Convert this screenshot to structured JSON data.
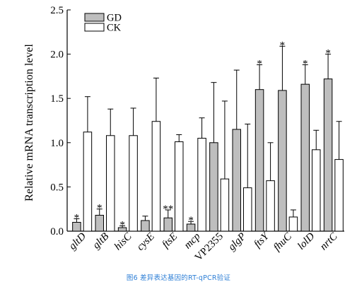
{
  "chart_data": {
    "type": "bar",
    "ylabel": "Relative mRNA transcription level",
    "xlabel": "",
    "ylim": [
      0,
      2.5
    ],
    "yticks": [
      "0.0",
      "0.5",
      "1.0",
      "1.5",
      "2.0",
      "2.5"
    ],
    "ytick_values": [
      0,
      0.5,
      1.0,
      1.5,
      2.0,
      2.5
    ],
    "categories": [
      "gltD",
      "gltB",
      "hisC",
      "cysE",
      "ftsE",
      "mcp",
      "VP2355",
      "glgP",
      "ftsY",
      "fhuC",
      "lolD",
      "nrtC"
    ],
    "category_italic": [
      true,
      true,
      true,
      true,
      true,
      true,
      false,
      true,
      true,
      true,
      true,
      true
    ],
    "series": [
      {
        "name": "GD",
        "color": "#bebebe",
        "values": [
          0.1,
          0.18,
          0.04,
          0.12,
          0.15,
          0.08,
          1.0,
          1.15,
          1.6,
          1.59,
          1.66,
          1.72
        ],
        "errors": [
          0.04,
          0.07,
          0.02,
          0.05,
          0.09,
          0.03,
          0.68,
          0.67,
          0.28,
          0.5,
          0.22,
          0.28
        ],
        "significance": [
          "*",
          "*",
          "*",
          "",
          "**",
          "*",
          "",
          "",
          "*",
          "*",
          "*",
          "*"
        ]
      },
      {
        "name": "CK",
        "color": "#ffffff",
        "values": [
          1.12,
          1.08,
          1.08,
          1.24,
          1.01,
          1.05,
          0.59,
          0.49,
          0.57,
          0.16,
          0.92,
          0.81
        ],
        "errors": [
          0.4,
          0.3,
          0.31,
          0.49,
          0.08,
          0.23,
          0.88,
          0.72,
          0.43,
          0.08,
          0.22,
          0.43
        ],
        "significance": [
          "",
          "",
          "",
          "",
          "",
          "",
          "",
          "",
          "",
          "",
          "",
          ""
        ]
      }
    ],
    "legend": {
      "position": "top-left",
      "entries": [
        "GD",
        "CK"
      ]
    },
    "grid": false
  },
  "caption": "图6  差异表达基因的RT-qPCR验证"
}
